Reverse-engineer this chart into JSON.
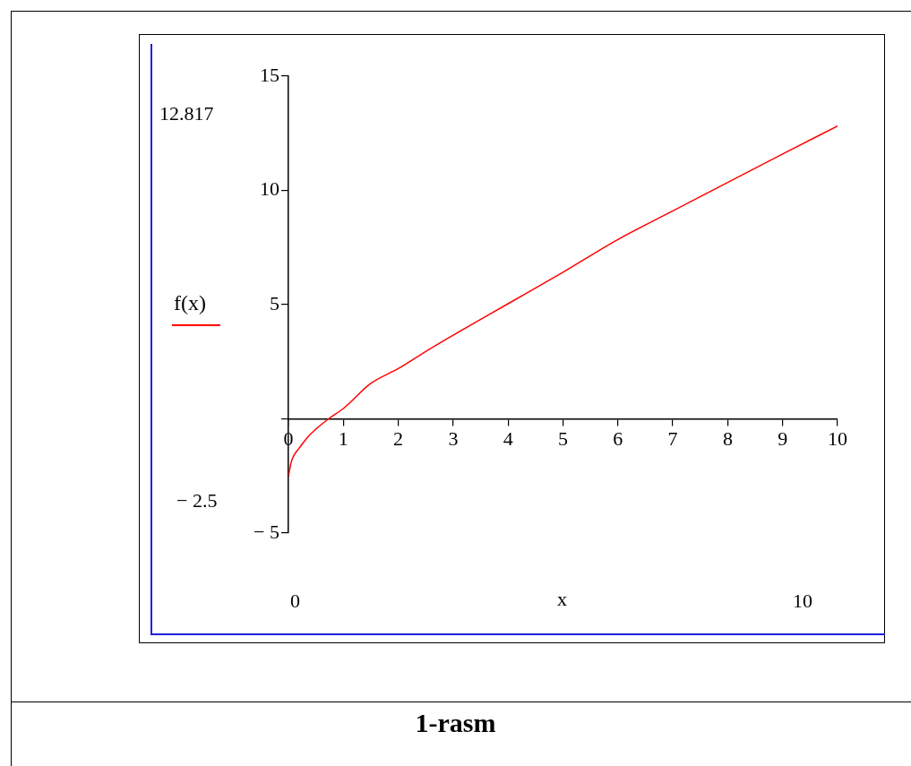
{
  "chart_data": {
    "type": "line",
    "xlabel": "x",
    "x": [
      0,
      0.05,
      0.1,
      0.19,
      0.35,
      0.5,
      0.73,
      1,
      1.5,
      2,
      2.5,
      3,
      4,
      5,
      6,
      7,
      8,
      9,
      10
    ],
    "series": [
      {
        "name": "f(x)",
        "color": "#ff0000",
        "values": [
          -2.5,
          -1.9,
          -1.6,
          -1.3,
          -0.8,
          -0.45,
          0,
          0.45,
          1.55,
          2.2,
          2.95,
          3.66,
          5.04,
          6.42,
          7.85,
          9.1,
          10.35,
          11.59,
          12.817
        ]
      }
    ],
    "xlim": [
      0,
      10
    ],
    "xticks": [
      0,
      1,
      2,
      3,
      4,
      5,
      6,
      7,
      8,
      9,
      10
    ],
    "ylim": [
      -5,
      15
    ],
    "yticks": [
      -5,
      {
        "value": 0,
        "label": null
      },
      5,
      10,
      15
    ],
    "legend": "left",
    "marker": "none",
    "line_style": "solid",
    "annotations": [
      "12.817",
      "− 2.5",
      "0",
      "10",
      "1-rasm"
    ]
  }
}
